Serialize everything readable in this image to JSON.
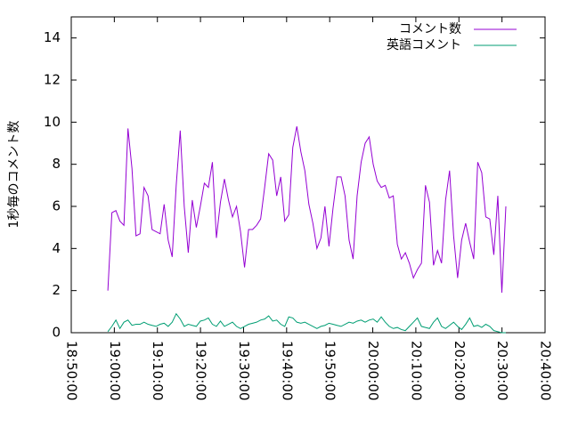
{
  "chart_data": {
    "type": "line",
    "y_label": "1秒毎のコメント数",
    "x": [
      "18:58:30",
      "18:59:26",
      "19:00:22",
      "19:01:18",
      "19:02:14",
      "19:03:10",
      "19:04:06",
      "19:05:02",
      "19:05:58",
      "19:06:54",
      "19:07:50",
      "19:08:46",
      "19:09:42",
      "19:10:38",
      "19:11:34",
      "19:12:30",
      "19:13:26",
      "19:14:22",
      "19:15:18",
      "19:16:14",
      "19:17:10",
      "19:18:06",
      "19:19:02",
      "19:19:58",
      "19:20:54",
      "19:21:50",
      "19:22:46",
      "19:23:42",
      "19:24:38",
      "19:25:34",
      "19:26:30",
      "19:27:26",
      "19:28:22",
      "19:29:18",
      "19:30:14",
      "19:31:10",
      "19:32:06",
      "19:33:02",
      "19:33:58",
      "19:34:54",
      "19:35:50",
      "19:36:46",
      "19:37:42",
      "19:38:38",
      "19:39:34",
      "19:40:30",
      "19:41:26",
      "19:42:22",
      "19:43:18",
      "19:44:14",
      "19:45:10",
      "19:46:06",
      "19:47:02",
      "19:47:58",
      "19:48:54",
      "19:49:50",
      "19:50:46",
      "19:51:42",
      "19:52:38",
      "19:53:34",
      "19:54:30",
      "19:55:26",
      "19:56:22",
      "19:57:18",
      "19:58:14",
      "19:59:10",
      "20:00:06",
      "20:01:02",
      "20:01:58",
      "20:02:54",
      "20:03:50",
      "20:04:46",
      "20:05:42",
      "20:06:38",
      "20:07:34",
      "20:08:30",
      "20:09:26",
      "20:10:22",
      "20:11:18",
      "20:12:14",
      "20:13:10",
      "20:14:06",
      "20:15:02",
      "20:15:58",
      "20:16:54",
      "20:17:50",
      "20:18:46",
      "20:19:42",
      "20:20:38",
      "20:21:34",
      "20:22:30",
      "20:23:26",
      "20:24:22",
      "20:25:18",
      "20:26:14",
      "20:27:10",
      "20:28:06",
      "20:29:02",
      "20:29:58",
      "20:30:54"
    ],
    "series": [
      {
        "name": "コメント数",
        "color": "#9400d3",
        "values": [
          2.0,
          5.7,
          5.8,
          5.3,
          5.1,
          9.7,
          7.8,
          4.6,
          4.7,
          6.9,
          6.5,
          4.9,
          4.8,
          4.7,
          6.1,
          4.4,
          3.6,
          7.0,
          9.6,
          6.0,
          3.8,
          6.3,
          5.0,
          6.0,
          7.1,
          6.9,
          8.1,
          4.5,
          6.2,
          7.3,
          6.3,
          5.5,
          6.0,
          4.8,
          3.1,
          4.9,
          4.9,
          5.1,
          5.4,
          6.9,
          8.5,
          8.2,
          6.5,
          7.4,
          5.3,
          5.6,
          8.8,
          9.8,
          8.6,
          7.7,
          6.1,
          5.2,
          4.0,
          4.5,
          6.0,
          4.1,
          5.9,
          7.4,
          7.4,
          6.5,
          4.4,
          3.5,
          6.5,
          8.1,
          9.0,
          9.3,
          8.0,
          7.2,
          6.9,
          7.0,
          6.4,
          6.5,
          4.2,
          3.5,
          3.8,
          3.3,
          2.6,
          3.0,
          3.3,
          7.0,
          6.2,
          3.2,
          3.9,
          3.3,
          6.3,
          7.7,
          4.6,
          2.6,
          4.4,
          5.2,
          4.3,
          3.5,
          8.1,
          7.6,
          5.5,
          5.4,
          3.7,
          6.5,
          1.9,
          6.0
        ]
      },
      {
        "name": "英語コメント",
        "color": "#009e73",
        "values": [
          0.05,
          0.3,
          0.6,
          0.2,
          0.5,
          0.6,
          0.35,
          0.4,
          0.4,
          0.5,
          0.4,
          0.35,
          0.3,
          0.4,
          0.45,
          0.3,
          0.5,
          0.9,
          0.65,
          0.3,
          0.4,
          0.35,
          0.3,
          0.55,
          0.6,
          0.7,
          0.4,
          0.3,
          0.55,
          0.3,
          0.4,
          0.5,
          0.3,
          0.2,
          0.3,
          0.4,
          0.45,
          0.5,
          0.6,
          0.65,
          0.8,
          0.55,
          0.6,
          0.4,
          0.3,
          0.75,
          0.7,
          0.5,
          0.45,
          0.5,
          0.4,
          0.3,
          0.2,
          0.3,
          0.35,
          0.45,
          0.4,
          0.35,
          0.3,
          0.4,
          0.5,
          0.45,
          0.55,
          0.6,
          0.5,
          0.6,
          0.65,
          0.5,
          0.75,
          0.5,
          0.3,
          0.2,
          0.25,
          0.15,
          0.1,
          0.3,
          0.5,
          0.7,
          0.3,
          0.25,
          0.2,
          0.5,
          0.7,
          0.3,
          0.2,
          0.35,
          0.5,
          0.3,
          0.15,
          0.4,
          0.7,
          0.3,
          0.35,
          0.25,
          0.4,
          0.3,
          0.1,
          0.05,
          0.0,
          0.0
        ]
      }
    ],
    "xlim": [
      "18:50:00",
      "20:40:00"
    ],
    "xticks": [
      "18:50:00",
      "19:00:00",
      "19:10:00",
      "19:20:00",
      "19:30:00",
      "19:40:00",
      "19:50:00",
      "20:00:00",
      "20:10:00",
      "20:20:00",
      "20:30:00",
      "20:40:00"
    ],
    "ylim": [
      0,
      15
    ],
    "yticks": [
      0,
      2,
      4,
      6,
      8,
      10,
      12,
      14
    ],
    "legend": "top-right"
  }
}
